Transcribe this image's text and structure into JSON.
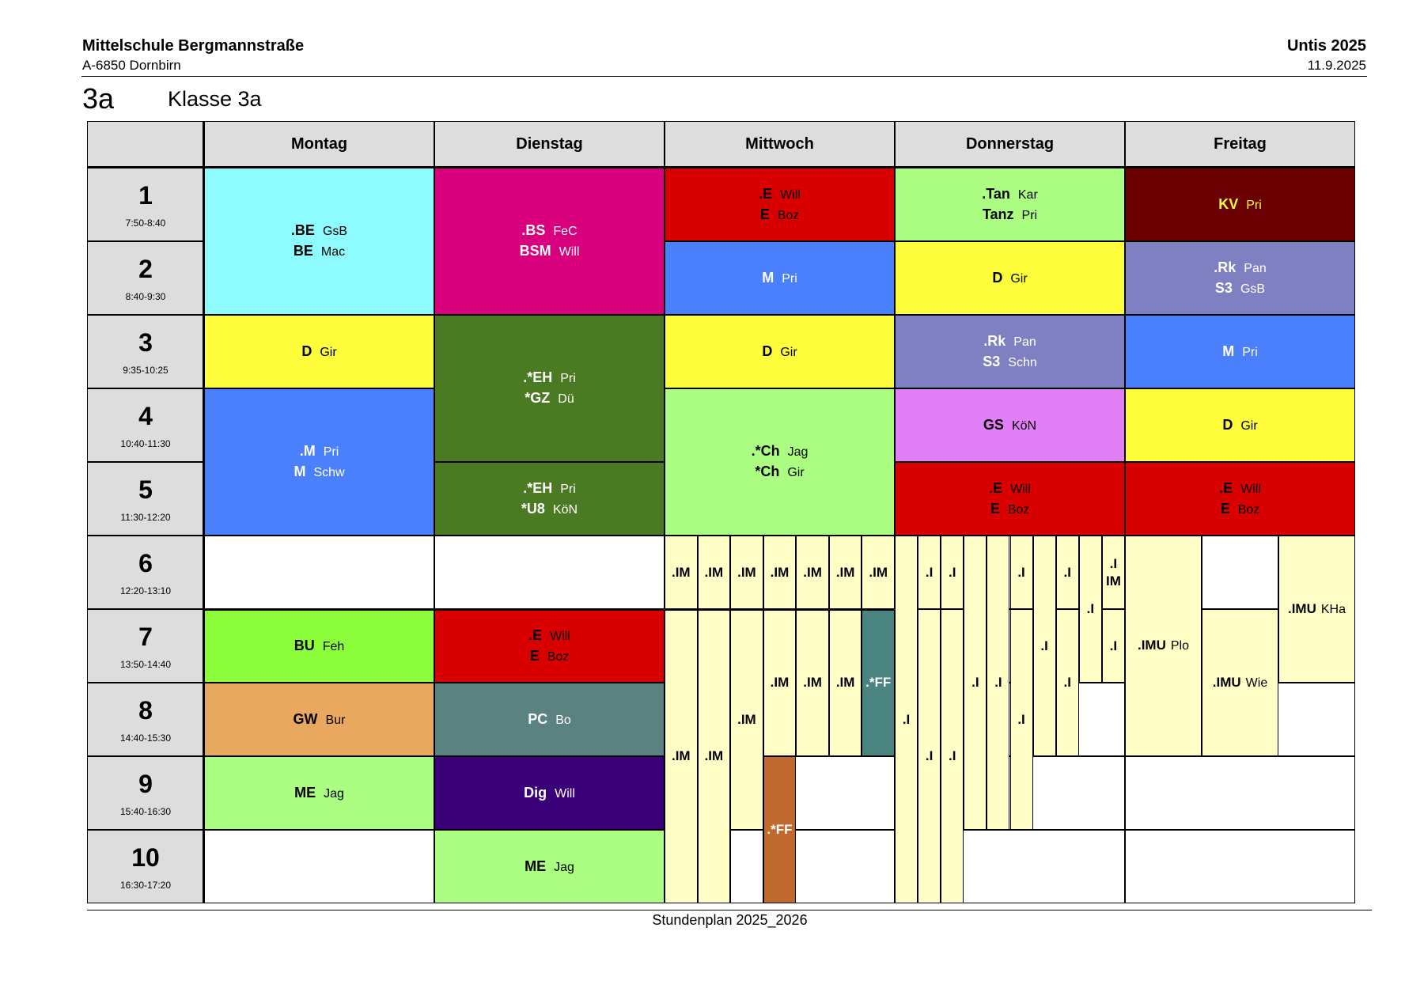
{
  "header": {
    "school_name": "Mittelschule Bergmannstraße",
    "school_address": "A-6850 Dornbirn",
    "app_name": "Untis 2025",
    "print_date": "11.9.2025"
  },
  "class": {
    "code": "3a",
    "title": "Klasse 3a"
  },
  "days": [
    "Montag",
    "Dienstag",
    "Mittwoch",
    "Donnerstag",
    "Freitag"
  ],
  "periods": [
    {
      "num": "1",
      "time": "7:50-8:40"
    },
    {
      "num": "2",
      "time": "8:40-9:30"
    },
    {
      "num": "3",
      "time": "9:35-10:25"
    },
    {
      "num": "4",
      "time": "10:40-11:30"
    },
    {
      "num": "5",
      "time": "11:30-12:20"
    },
    {
      "num": "6",
      "time": "12:20-13:10"
    },
    {
      "num": "7",
      "time": "13:50-14:40"
    },
    {
      "num": "8",
      "time": "14:40-15:30"
    },
    {
      "num": "9",
      "time": "15:40-16:30"
    },
    {
      "num": "10",
      "time": "16:30-17:20"
    }
  ],
  "colors": {
    "cyan": "#8efcfe",
    "magenta": "#d9007d",
    "red": "#d80000",
    "lightgreen": "#acfe82",
    "maroon": "#6a0000",
    "blue": "#4a80fb",
    "yellow": "#fdfd3b",
    "purplegray": "#7f80c1",
    "darkgreen": "#4a7a22",
    "pink": "#e27ef6",
    "cream": "#fefec6",
    "lime": "#8cfd3b",
    "orange": "#e8a860",
    "slate": "#5a8280",
    "indigo": "#3a0078",
    "teal": "#4a8480",
    "brown": "#c06a30",
    "kv_yellow": "#fefe3b"
  },
  "lessons": [
    {
      "day": 0,
      "start": 1,
      "span": 2,
      "color": "cyan",
      "text": "#000",
      "lines": [
        {
          "s": ".BE",
          "t": "GsB"
        },
        {
          "s": "BE",
          "t": "Mac"
        }
      ]
    },
    {
      "day": 0,
      "start": 3,
      "span": 1,
      "color": "yellow",
      "text": "#000",
      "lines": [
        {
          "s": "D",
          "t": "Gir"
        }
      ]
    },
    {
      "day": 0,
      "start": 4,
      "span": 2,
      "color": "blue",
      "text": "#fff",
      "lines": [
        {
          "s": ".M",
          "t": "Pri"
        },
        {
          "s": "M",
          "t": "Schw"
        }
      ]
    },
    {
      "day": 0,
      "start": 7,
      "span": 1,
      "color": "lime",
      "text": "#000",
      "lines": [
        {
          "s": "BU",
          "t": "Feh"
        }
      ]
    },
    {
      "day": 0,
      "start": 8,
      "span": 1,
      "color": "orange",
      "text": "#000",
      "lines": [
        {
          "s": "GW",
          "t": "Bur"
        }
      ]
    },
    {
      "day": 0,
      "start": 9,
      "span": 1,
      "color": "lightgreen",
      "text": "#000",
      "lines": [
        {
          "s": "ME",
          "t": "Jag"
        }
      ]
    },
    {
      "day": 1,
      "start": 1,
      "span": 2,
      "color": "magenta",
      "text": "#fff",
      "lines": [
        {
          "s": ".BS",
          "t": "FeC"
        },
        {
          "s": "BSM",
          "t": "Will"
        }
      ]
    },
    {
      "day": 1,
      "start": 3,
      "span": 2,
      "color": "darkgreen",
      "text": "#fff",
      "lines": [
        {
          "s": ".*EH",
          "t": "Pri"
        },
        {
          "s": "*GZ",
          "t": "Dü"
        }
      ]
    },
    {
      "day": 1,
      "start": 5,
      "span": 1,
      "color": "darkgreen",
      "text": "#fff",
      "lines": [
        {
          "s": ".*EH",
          "t": "Pri"
        },
        {
          "s": "*U8",
          "t": "KöN"
        }
      ]
    },
    {
      "day": 1,
      "start": 7,
      "span": 1,
      "color": "red",
      "text": "#000",
      "lines": [
        {
          "s": ".E",
          "t": "Will"
        },
        {
          "s": "E",
          "t": "Boz"
        }
      ]
    },
    {
      "day": 1,
      "start": 8,
      "span": 1,
      "color": "slate",
      "text": "#fff",
      "lines": [
        {
          "s": "PC",
          "t": "Bo"
        }
      ]
    },
    {
      "day": 1,
      "start": 9,
      "span": 1,
      "color": "indigo",
      "text": "#fff",
      "lines": [
        {
          "s": "Dig",
          "t": "Will"
        }
      ]
    },
    {
      "day": 1,
      "start": 10,
      "span": 1,
      "color": "lightgreen",
      "text": "#000",
      "lines": [
        {
          "s": "ME",
          "t": "Jag"
        }
      ]
    },
    {
      "day": 2,
      "start": 1,
      "span": 1,
      "color": "red",
      "text": "#000",
      "lines": [
        {
          "s": ".E",
          "t": "Will"
        },
        {
          "s": "E",
          "t": "Boz"
        }
      ]
    },
    {
      "day": 2,
      "start": 2,
      "span": 1,
      "color": "blue",
      "text": "#fff",
      "lines": [
        {
          "s": "M",
          "t": "Pri"
        }
      ]
    },
    {
      "day": 2,
      "start": 3,
      "span": 1,
      "color": "yellow",
      "text": "#000",
      "lines": [
        {
          "s": "D",
          "t": "Gir"
        }
      ]
    },
    {
      "day": 2,
      "start": 4,
      "span": 2,
      "color": "lightgreen",
      "text": "#000",
      "lines": [
        {
          "s": ".*Ch",
          "t": "Jag"
        },
        {
          "s": "*Ch",
          "t": "Gir"
        }
      ]
    },
    {
      "day": 3,
      "start": 1,
      "span": 1,
      "color": "lightgreen",
      "text": "#000",
      "lines": [
        {
          "s": ".Tan",
          "t": "Kar"
        },
        {
          "s": "Tanz",
          "t": "Pri"
        }
      ]
    },
    {
      "day": 3,
      "start": 2,
      "span": 1,
      "color": "yellow",
      "text": "#000",
      "lines": [
        {
          "s": "D",
          "t": "Gir"
        }
      ]
    },
    {
      "day": 3,
      "start": 3,
      "span": 1,
      "color": "purplegray",
      "text": "#fff",
      "lines": [
        {
          "s": ".Rk",
          "t": "Pan"
        },
        {
          "s": "S3",
          "t": "Schn"
        }
      ]
    },
    {
      "day": 3,
      "start": 4,
      "span": 1,
      "color": "pink",
      "text": "#000",
      "lines": [
        {
          "s": "GS",
          "t": "KöN"
        }
      ]
    },
    {
      "day": 3,
      "start": 5,
      "span": 1,
      "color": "red",
      "text": "#000",
      "lines": [
        {
          "s": ".E",
          "t": "Will"
        },
        {
          "s": "E",
          "t": "Boz"
        }
      ]
    },
    {
      "day": 4,
      "start": 1,
      "span": 1,
      "color": "maroon",
      "text": "#fefe3b",
      "lines": [
        {
          "s": "KV",
          "t": "Pri"
        }
      ]
    },
    {
      "day": 4,
      "start": 2,
      "span": 1,
      "color": "purplegray",
      "text": "#fff",
      "lines": [
        {
          "s": ".Rk",
          "t": "Pan"
        },
        {
          "s": "S3",
          "t": "GsB"
        }
      ]
    },
    {
      "day": 4,
      "start": 3,
      "span": 1,
      "color": "blue",
      "text": "#fff",
      "lines": [
        {
          "s": "M",
          "t": "Pri"
        }
      ]
    },
    {
      "day": 4,
      "start": 4,
      "span": 1,
      "color": "yellow",
      "text": "#000",
      "lines": [
        {
          "s": "D",
          "t": "Gir"
        }
      ]
    },
    {
      "day": 4,
      "start": 5,
      "span": 1,
      "color": "red",
      "text": "#000",
      "lines": [
        {
          "s": ".E",
          "t": "Will"
        },
        {
          "s": "E",
          "t": "Boz"
        }
      ]
    }
  ],
  "afternoon": {
    "wednesday_cols": [
      {
        "cells": [
          {
            "t": ".IM"
          },
          {
            "t": ".IM",
            "span": 4
          }
        ]
      },
      {
        "cells": [
          {
            "t": ".IM"
          },
          {
            "t": ".IM",
            "span": 4
          }
        ]
      },
      {
        "cells": [
          {
            "t": ".IM"
          },
          {
            "t": ".IM",
            "span": 3
          },
          {
            "empty": true
          }
        ]
      },
      {
        "cells": [
          {
            "t": ".IM"
          },
          {
            "t": ".IM",
            "span": 2
          },
          {
            "t": ".*FF",
            "span": 2,
            "color": "brown",
            "fg": "#fff"
          }
        ]
      },
      {
        "cells": [
          {
            "t": ".IM"
          },
          {
            "t": ".IM",
            "span": 2
          }
        ]
      },
      {
        "cells": [
          {
            "t": ".IM"
          },
          {
            "t": ".IM",
            "span": 2
          }
        ]
      },
      {
        "cells": [
          {
            "t": ".IM"
          },
          {
            "t": ".*FF",
            "span": 2,
            "color": "teal",
            "fg": "#fff"
          }
        ]
      }
    ],
    "thursday_cols": [
      {
        "cells": [
          {
            "t": ".I",
            "span": 5
          }
        ]
      },
      {
        "cells": [
          {
            "t": ".I"
          },
          {
            "t": ".I",
            "span": 4
          }
        ]
      },
      {
        "cells": [
          {
            "t": ".I"
          },
          {
            "t": ".I",
            "span": 4
          }
        ]
      },
      {
        "cells": [
          {
            "t": ".I",
            "span": 4
          }
        ]
      },
      {
        "cells": [
          {
            "t": ".I",
            "span": 4
          }
        ]
      },
      {
        "cells": [
          {
            "t": ".I"
          },
          {
            "t": ".I",
            "span": 3
          }
        ]
      },
      {
        "cells": [
          {
            "t": ".I",
            "span": 3
          }
        ]
      },
      {
        "cells": [
          {
            "t": ".I"
          },
          {
            "t": ".I",
            "span": 2
          }
        ]
      },
      {
        "cells": [
          {
            "t": ".I",
            "span": 2
          }
        ]
      },
      {
        "cells": [
          {
            "t": ".I IM"
          },
          {
            "t": ".I"
          }
        ]
      }
    ],
    "friday_cols": [
      {
        "cells": [
          {
            "t": ".IMU",
            "tch": "Plo",
            "span": 3
          }
        ]
      },
      {
        "cells": [
          {
            "empty": true
          },
          {
            "t": ".IMU",
            "tch": "Wie",
            "span": 2
          }
        ]
      },
      {
        "cells": [
          {
            "t": ".IMU",
            "tch": "KHa",
            "span": 2
          }
        ]
      }
    ]
  },
  "footer": {
    "text": "Stundenplan 2025_2026"
  }
}
